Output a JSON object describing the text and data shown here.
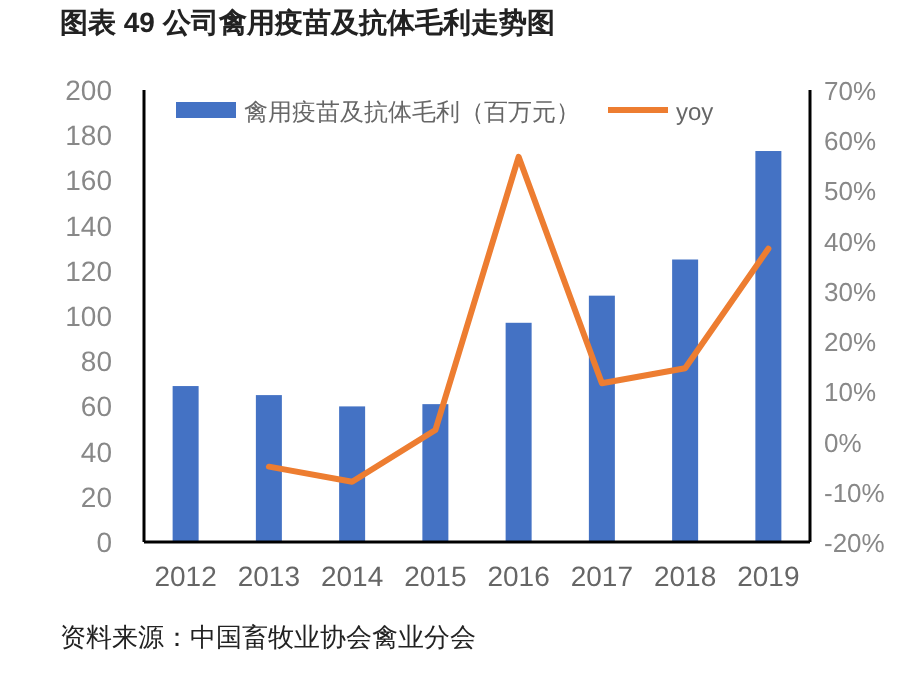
{
  "chart_data": {
    "type": "bar",
    "title": "图表 49 公司禽用疫苗及抗体毛利走势图",
    "categories": [
      "2012",
      "2013",
      "2014",
      "2015",
      "2016",
      "2017",
      "2018",
      "2019"
    ],
    "series": [
      {
        "name": "禽用疫苗及抗体毛利（百万元）",
        "color": "#4472c4",
        "values": [
          69,
          65,
          60,
          61,
          97,
          109,
          125,
          173
        ]
      },
      {
        "name": "yoy",
        "type": "line",
        "axis": "y2",
        "color": "#ed7d31",
        "values": [
          null,
          -5,
          -8,
          2.3,
          56.7,
          11.6,
          14.6,
          38.4
        ]
      }
    ],
    "ylim": [
      0,
      200
    ],
    "yticks": [
      0,
      20,
      40,
      60,
      80,
      100,
      120,
      140,
      160,
      180,
      200
    ],
    "y2lim": [
      -20,
      70
    ],
    "y2ticks": [
      {
        "value": -20,
        "label": "-20%"
      },
      {
        "value": -10,
        "label": "-10%"
      },
      {
        "value": 0,
        "label": "0%"
      },
      {
        "value": 10,
        "label": "10%"
      },
      {
        "value": 20,
        "label": "20%"
      },
      {
        "value": 30,
        "label": "30%"
      },
      {
        "value": 40,
        "label": "40%"
      },
      {
        "value": 50,
        "label": "50%"
      },
      {
        "value": 60,
        "label": "60%"
      },
      {
        "value": 70,
        "label": "70%"
      }
    ],
    "legend": "top",
    "grid": false,
    "annotations": [
      "资料来源：中国畜牧业协会禽业分会"
    ]
  }
}
